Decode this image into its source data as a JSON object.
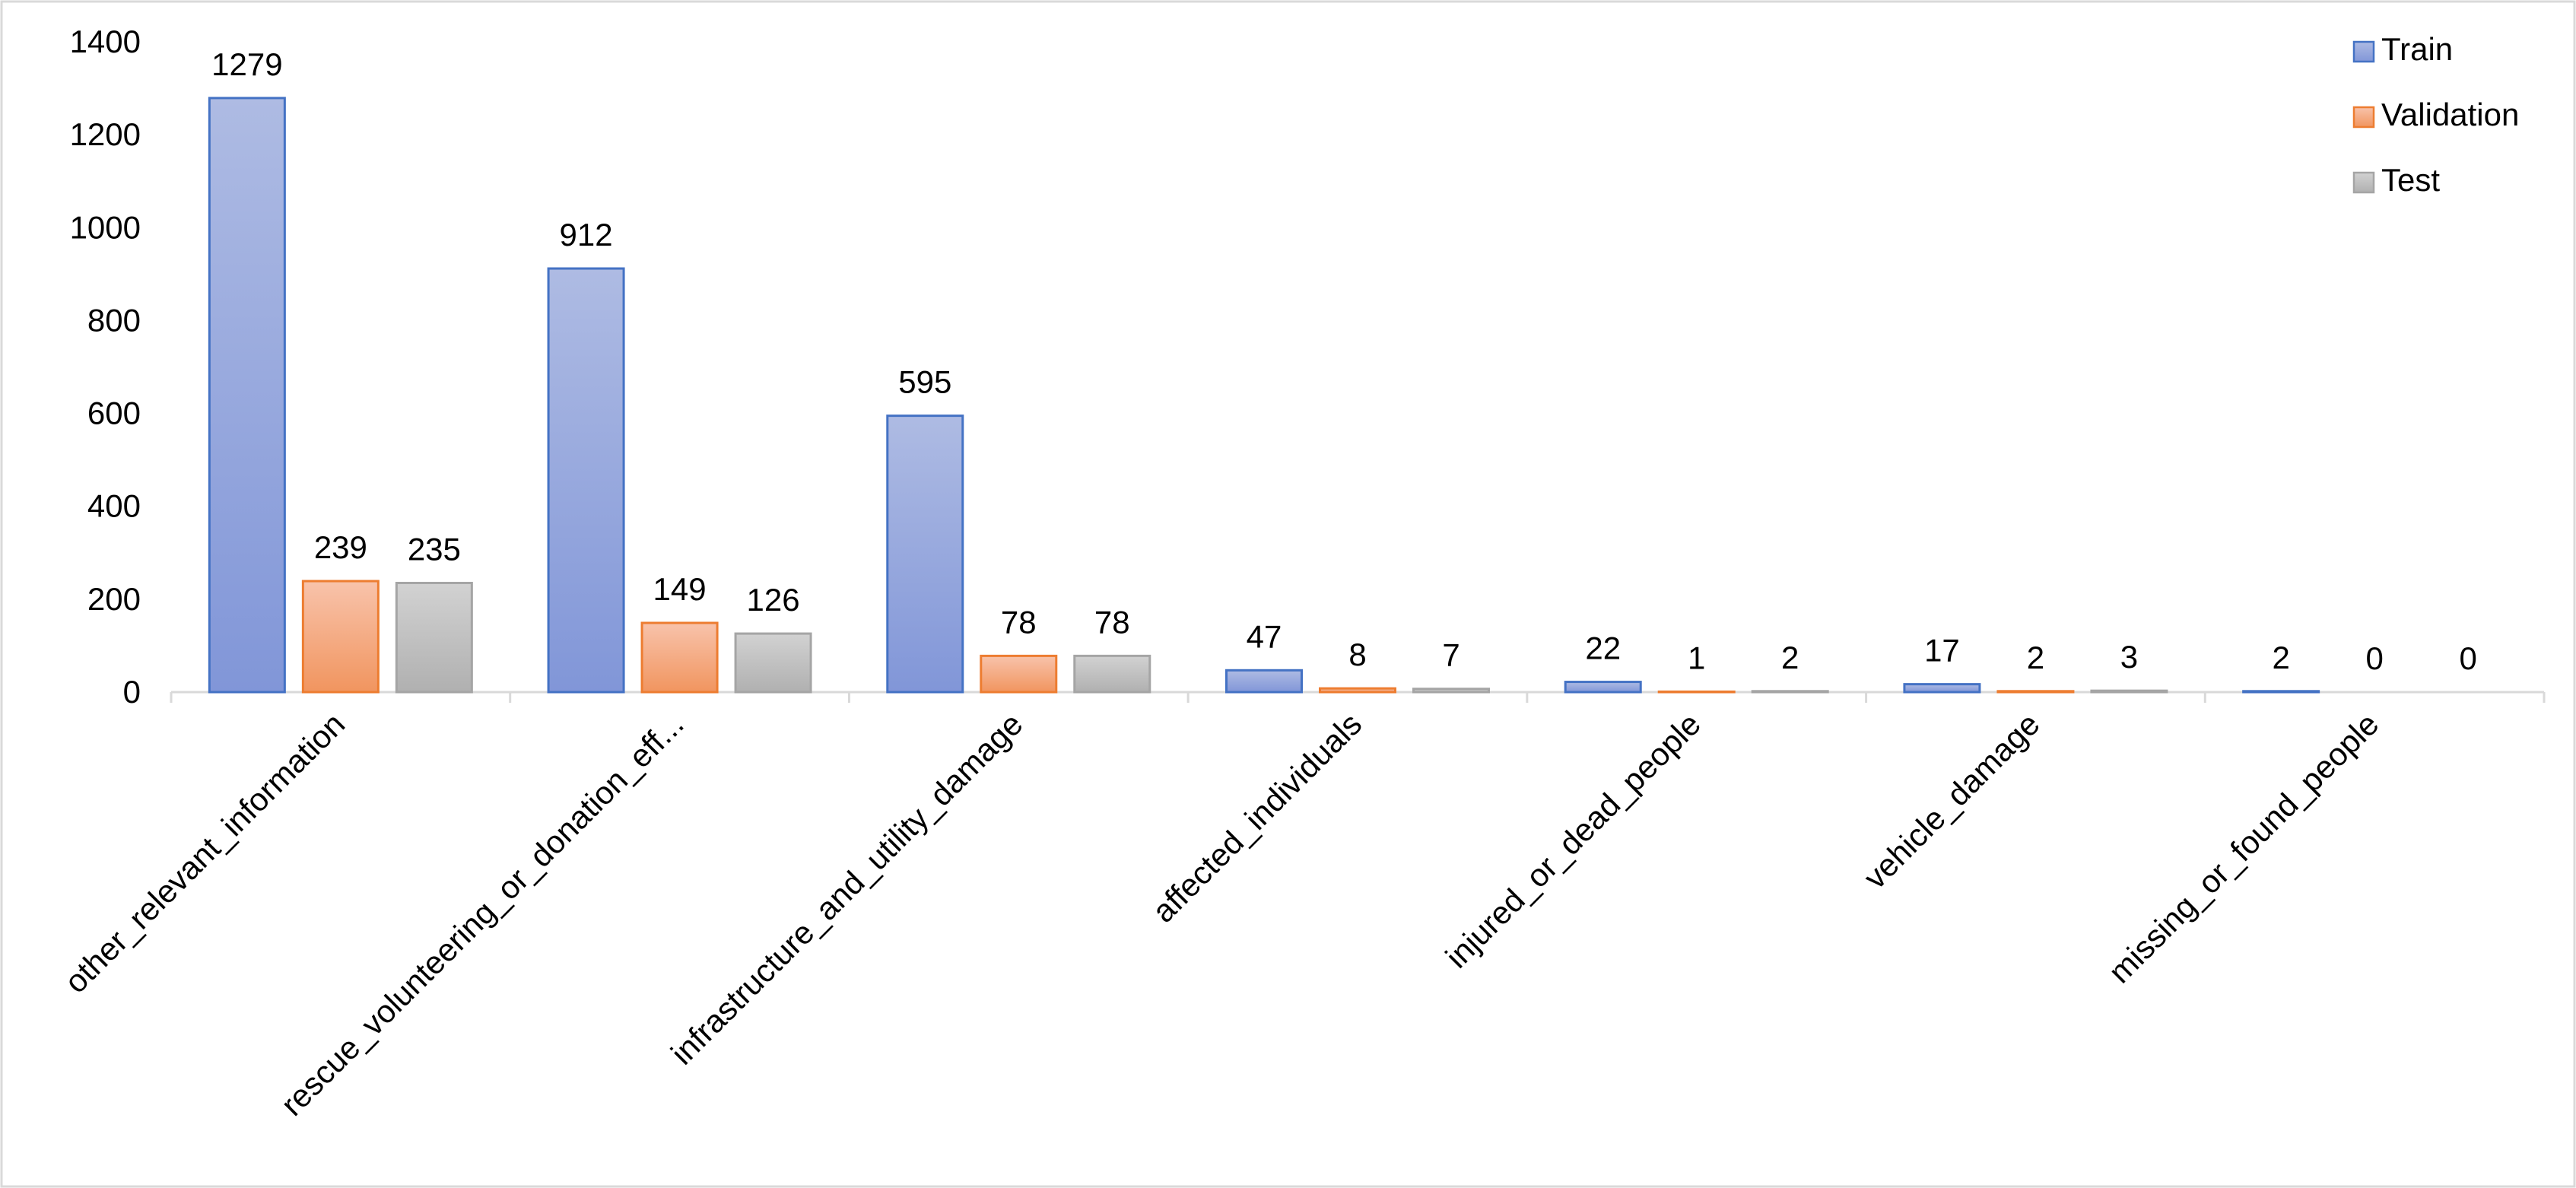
{
  "chart_data": {
    "type": "bar",
    "title": "",
    "xlabel": "",
    "ylabel": "",
    "ylim": [
      0,
      1400
    ],
    "yticks": [
      0,
      200,
      400,
      600,
      800,
      1000,
      1200,
      1400
    ],
    "grid": false,
    "legend_position": "top-right",
    "categories": [
      "other_relevant_information",
      "rescue_volunteering_or_donation_eff...",
      "infrastructure_and_utility_damage",
      "affected_individuals",
      "injured_or_dead_people",
      "vehicle_damage",
      "missing_or_found_people"
    ],
    "series": [
      {
        "name": "Train",
        "color": "#8FA3DC",
        "stroke": "#4472C4",
        "values": [
          1279,
          912,
          595,
          47,
          22,
          17,
          2
        ]
      },
      {
        "name": "Validation",
        "color": "#F4A98A",
        "stroke": "#ED7D31",
        "values": [
          239,
          149,
          78,
          8,
          1,
          2,
          0
        ]
      },
      {
        "name": "Test",
        "color": "#BFBFBF",
        "stroke": "#A5A5A5",
        "values": [
          235,
          126,
          78,
          7,
          2,
          3,
          0
        ]
      }
    ]
  }
}
